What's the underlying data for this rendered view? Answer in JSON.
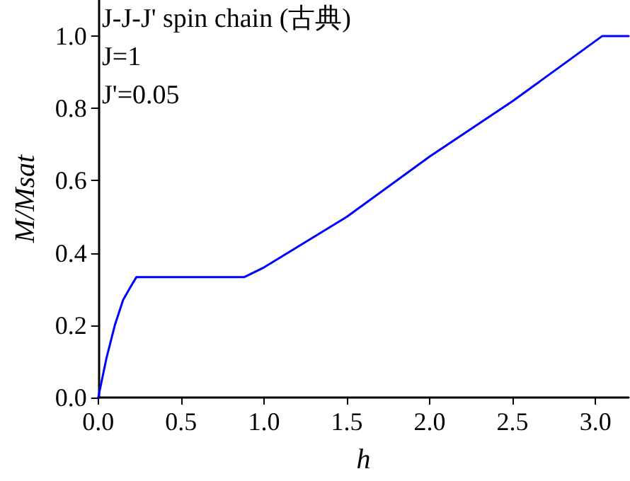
{
  "chart_data": {
    "type": "line",
    "title": "J-J-J' spin chain (古典)",
    "annotations": [
      "J=1",
      "J'=0.05"
    ],
    "xlabel": "h",
    "ylabel": "M/Msat",
    "x": [
      0,
      0.05,
      0.1,
      0.15,
      0.2,
      0.23,
      0.88,
      1.0,
      1.5,
      2.0,
      2.5,
      3.04,
      3.2
    ],
    "series": [
      {
        "color": "#0000ff",
        "values": [
          0,
          0.11,
          0.2,
          0.27,
          0.31,
          0.333,
          0.333,
          0.36,
          0.5,
          0.667,
          0.82,
          1.0,
          1.0
        ]
      }
    ],
    "xlim": [
      0,
      3.2
    ],
    "xticks": [
      {
        "value": 0,
        "label": "0.0"
      },
      {
        "value": 0.5,
        "label": "0.5"
      },
      {
        "value": 1,
        "label": "1.0"
      },
      {
        "value": 1.5,
        "label": "1.5"
      },
      {
        "value": 2,
        "label": "2.0"
      },
      {
        "value": 2.5,
        "label": "2.5"
      },
      {
        "value": 3,
        "label": "3.0"
      }
    ],
    "ylim": [
      0,
      1.1
    ],
    "yticks": [
      {
        "value": 0,
        "label": "0.0"
      },
      {
        "value": 0.2,
        "label": "0.2"
      },
      {
        "value": 0.4,
        "label": "0.4"
      },
      {
        "value": 0.6,
        "label": "0.6"
      },
      {
        "value": 0.8,
        "label": "0.8"
      },
      {
        "value": 1,
        "label": "1.0"
      }
    ],
    "grid": false,
    "marker": "none",
    "line_style": "solid"
  }
}
